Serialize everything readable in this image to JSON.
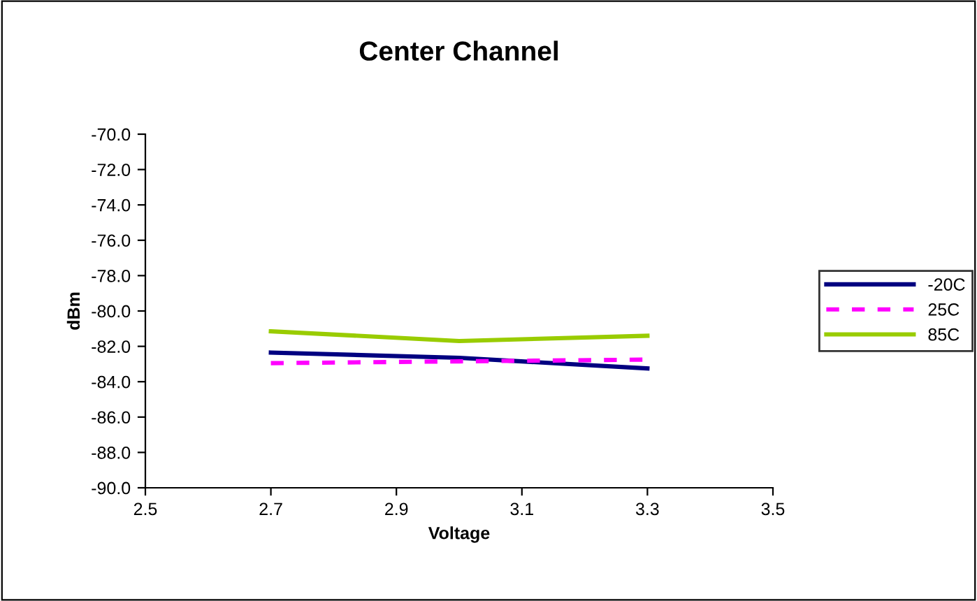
{
  "chart_data": {
    "type": "line",
    "title": "Center Channel",
    "xlabel": "Voltage",
    "ylabel": "dBm",
    "x": [
      2.7,
      3.0,
      3.3
    ],
    "series": [
      {
        "name": "-20C",
        "color": "#000080",
        "values": [
          -82.35,
          -82.65,
          -83.25
        ],
        "line_style": "solid"
      },
      {
        "name": "25C",
        "color": "#ff00ff",
        "values": [
          -82.95,
          -82.85,
          -82.75
        ],
        "line_style": "dashed"
      },
      {
        "name": "85C",
        "color": "#99cc00",
        "values": [
          -81.15,
          -81.7,
          -81.4
        ],
        "line_style": "solid"
      }
    ],
    "xlim": [
      2.5,
      3.5
    ],
    "xticks": [
      2.5,
      2.7,
      2.9,
      3.1,
      3.3,
      3.5
    ],
    "ylim": [
      -90,
      -70
    ],
    "yticks": [
      {
        "value": -90,
        "label": "-90.0"
      },
      {
        "value": -88,
        "label": "-88.0"
      },
      {
        "value": -86,
        "label": "-86.0"
      },
      {
        "value": -84,
        "label": "-84.0"
      },
      {
        "value": -82,
        "label": "-82.0"
      },
      {
        "value": -80,
        "label": "-80.0"
      },
      {
        "value": -78,
        "label": "-78.0"
      },
      {
        "value": -76,
        "label": "-76.0"
      },
      {
        "value": -74,
        "label": "-74.0"
      },
      {
        "value": -72,
        "label": "-72.0"
      },
      {
        "value": -70,
        "label": "-70.0"
      }
    ],
    "grid": false,
    "legend": "right",
    "marker": "none"
  }
}
